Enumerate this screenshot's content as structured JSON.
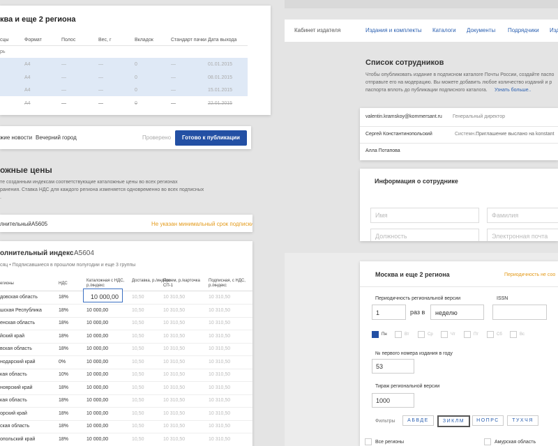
{
  "left_top": {
    "title": "ква и еще 2 региона",
    "headers": [
      "сцы",
      "Формат",
      "Полос",
      "Вес, г",
      "Вкладок",
      "Стандарт пачки",
      "Дата выхода"
    ],
    "group": "рь",
    "rows": [
      [
        "A4",
        "—",
        "—",
        "0",
        "—",
        "01.01.2015"
      ],
      [
        "A4",
        "—",
        "—",
        "0",
        "—",
        "08.01.2015"
      ],
      [
        "A4",
        "—",
        "—",
        "0",
        "—",
        "15.01.2015"
      ],
      [
        "A4",
        "—",
        "—",
        "0",
        "—",
        "22.01.2015"
      ]
    ]
  },
  "publication_bar": {
    "name": "жие новости",
    "edition": "Вечерний город",
    "status": "Проверено",
    "button": "Готово к публикации"
  },
  "catalog_prices": {
    "title": "ожные цены",
    "description": [
      "те созданным индексам соответствующие каталожные цены во всех регионах",
      "ранения. Ставка НДС для каждого региона изменяется одновременно во всех подписных",
      "."
    ]
  },
  "index_bar": {
    "name": "лнительный",
    "code": "А5605",
    "warning": "Не указан минимальный срок подписки"
  },
  "index_card": {
    "title": "олнительный индекс",
    "code": "А5604",
    "subtitle": "сяц • Подписавшиеся в прошлом полугодии и еще 3 группы",
    "headers": [
      "егионы",
      "НДС",
      "Каталожная с НДС, р./индекс",
      "Доставка, р./индекс",
      "Прием, р./карточка СП-1",
      "Подписная, с НДС, р./индекс"
    ],
    "rows": [
      [
        "довская область",
        "18%",
        "10 000,00",
        "10,50",
        "10 310,50",
        "10 310,50"
      ],
      [
        "шская Республика",
        "18%",
        "10 000,00",
        "10,50",
        "10 310,50",
        "10 310,50"
      ],
      [
        "енская область",
        "18%",
        "10 000,00",
        "10,50",
        "10 310,50",
        "10 310,50"
      ],
      [
        "йский край",
        "18%",
        "10 000,00",
        "10,50",
        "10 310,50",
        "10 310,50"
      ],
      [
        "вская область",
        "18%",
        "10 000,00",
        "10,50",
        "10 310,50",
        "10 310,50"
      ],
      [
        "нодарский край",
        "0%",
        "10 000,00",
        "10,50",
        "10 310,50",
        "10 310,50"
      ],
      [
        "кая область",
        "10%",
        "10 000,00",
        "10,50",
        "10 310,50",
        "10 310,50"
      ],
      [
        "ноярский край",
        "18%",
        "10 000,00",
        "10,50",
        "10 310,50",
        "10 310,50"
      ],
      [
        "кая область",
        "18%",
        "10 000,00",
        "10,50",
        "10 310,50",
        "10 310,50"
      ],
      [
        "орский край",
        "18%",
        "10 000,00",
        "10,50",
        "10 310,50",
        "10 310,50"
      ],
      [
        "ская область",
        "18%",
        "10 000,00",
        "10,50",
        "10 310,50",
        "10 310,50"
      ],
      [
        "опольский край",
        "18%",
        "10 000,00",
        "10,50",
        "10 310,50",
        "10 310,50"
      ]
    ]
  },
  "nav": {
    "brand": "Кабинет издателя",
    "links": [
      "Издания и комплекты",
      "Каталоги",
      "Документы",
      "Подрядчики",
      "Изд"
    ]
  },
  "employees": {
    "title": "Список сотрудников",
    "description": [
      "Чтобы опубликовать издание в подписном каталоге Почты России, создайте паспо",
      "отправьте его на модерацию. Вы можете добавить любое количество изданий и р",
      "паспорта вплоть до публикации подписного каталога."
    ],
    "link": "Узнать больше..",
    "rows": [
      [
        "valentin.kramskoy@kommersant.ru",
        "Генеральный директор",
        ""
      ],
      [
        "Сергей Константинопольский",
        "Системн...",
        "Приглашение выслано на konstant"
      ],
      [
        "Алла Потапова",
        "",
        ""
      ]
    ]
  },
  "employee_info": {
    "title": "Информация о сотруднике",
    "fields": [
      "Имя",
      "Фамилия",
      "Должность",
      "Электронная почта"
    ]
  },
  "region_card": {
    "title": "Москва и еще 2 региона",
    "warning": "Периодичность не соо",
    "periodicity_label": "Периодичность региональной версии",
    "issn_label": "ISSN",
    "periodicity_count": "1",
    "times_per": "раз в",
    "period": "неделю",
    "days": [
      "Пн",
      "Вт",
      "Ср",
      "Чт",
      "Пт",
      "Сб",
      "Вс"
    ],
    "first_issue_label": "№ первого номера издания в году",
    "first_issue": "53",
    "circulation_label": "Тираж региональной версии",
    "circulation": "1000",
    "filters_label": "Фильтры",
    "filters": [
      "АБВДЕ",
      "ЗИКЛМ",
      "НОПРС",
      "ТУХЧЯ"
    ],
    "regions": [
      "Все регионы",
      "Амурская область"
    ]
  }
}
